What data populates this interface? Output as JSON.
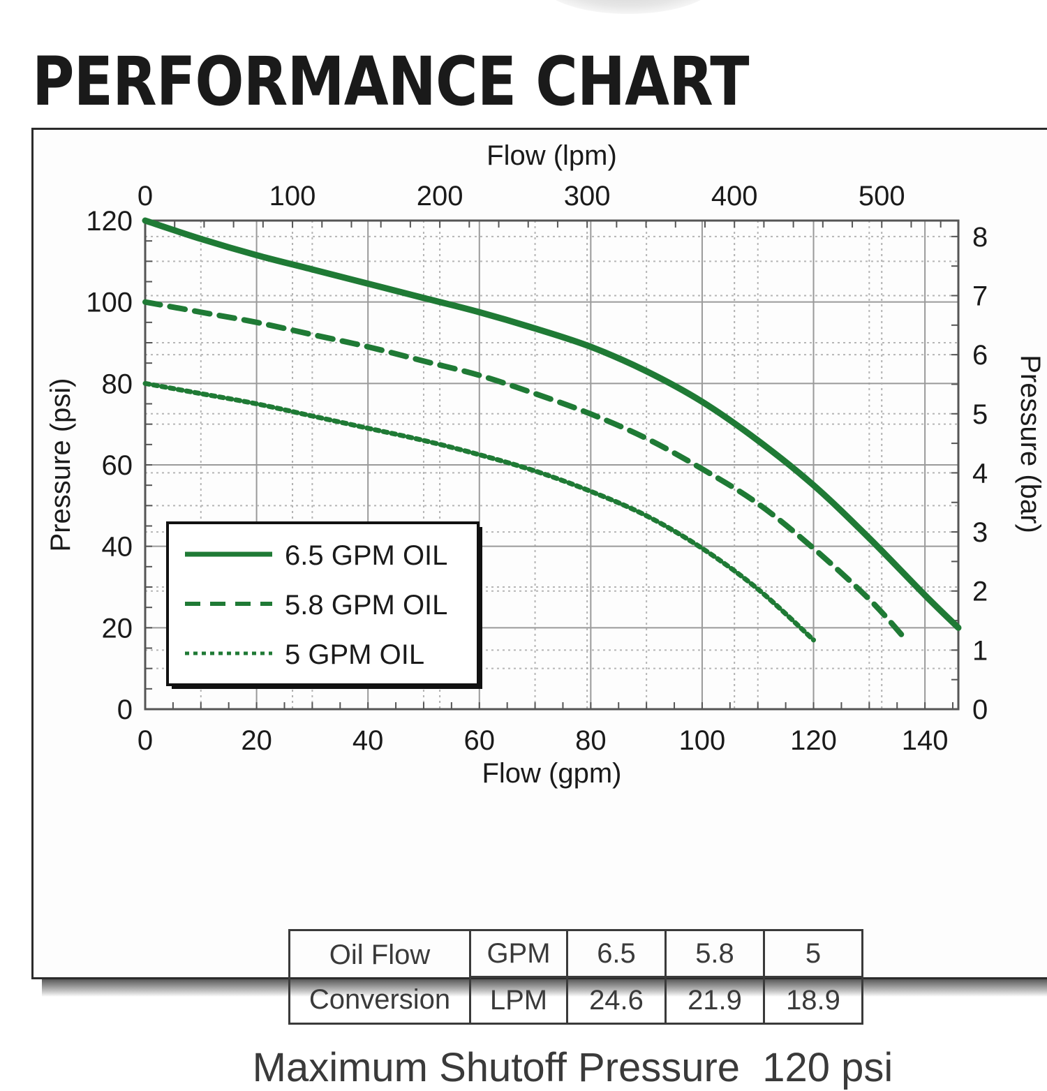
{
  "page_title": "PERFORMANCE CHART",
  "chart_data": {
    "type": "line",
    "title": "",
    "x_bottom": {
      "label": "Flow (gpm)",
      "range": [
        0,
        146
      ],
      "ticks": [
        0,
        20,
        40,
        60,
        80,
        100,
        120,
        140
      ]
    },
    "x_top": {
      "label": "Flow (lpm)",
      "range": [
        0,
        552
      ],
      "ticks": [
        0,
        100,
        200,
        300,
        400,
        500
      ]
    },
    "y_left": {
      "label": "Pressure (psi)",
      "range": [
        0,
        120
      ],
      "ticks": [
        0,
        20,
        40,
        60,
        80,
        100,
        120
      ]
    },
    "y_right": {
      "label": "Pressure (bar)",
      "range": [
        0,
        8.27
      ],
      "ticks": [
        0,
        1,
        2,
        3,
        4,
        5,
        6,
        7,
        8
      ]
    },
    "grid": true,
    "legend_position": "bottom-left",
    "series": [
      {
        "name": "6.5 GPM OIL",
        "style": "solid",
        "color": "#1f7a35",
        "x": [
          0,
          10,
          20,
          30,
          40,
          50,
          60,
          70,
          80,
          90,
          100,
          110,
          120,
          130,
          140,
          146
        ],
        "y": [
          120,
          115.5,
          111.5,
          108,
          104.5,
          101,
          97.5,
          93.5,
          89,
          83,
          75.5,
          66,
          55,
          42,
          28,
          20
        ]
      },
      {
        "name": "5.8 GPM OIL",
        "style": "dashed",
        "color": "#1f7a35",
        "x": [
          0,
          10,
          20,
          30,
          40,
          50,
          60,
          70,
          80,
          90,
          100,
          110,
          120,
          130,
          136
        ],
        "y": [
          100,
          97.5,
          95,
          92,
          89,
          85.5,
          82,
          77.5,
          72.5,
          66.5,
          59,
          50.5,
          39.5,
          27,
          18
        ]
      },
      {
        "name": "5 GPM OIL",
        "style": "long-dash",
        "color": "#1f7a35",
        "x": [
          0,
          10,
          20,
          30,
          40,
          50,
          60,
          70,
          80,
          90,
          100,
          110,
          120
        ],
        "y": [
          80,
          77.5,
          75,
          72,
          69,
          66,
          62.5,
          58.5,
          53.5,
          47.5,
          39.5,
          29.5,
          17
        ]
      }
    ]
  },
  "conversion_table": {
    "header": "Oil Flow\nConversion",
    "rows": [
      {
        "unit": "GPM",
        "values": [
          "6.5",
          "5.8",
          "5"
        ]
      },
      {
        "unit": "LPM",
        "values": [
          "24.6",
          "21.9",
          "18.9"
        ]
      }
    ]
  },
  "footer_note": "Maximum Shutoff Pressure  120 psi"
}
